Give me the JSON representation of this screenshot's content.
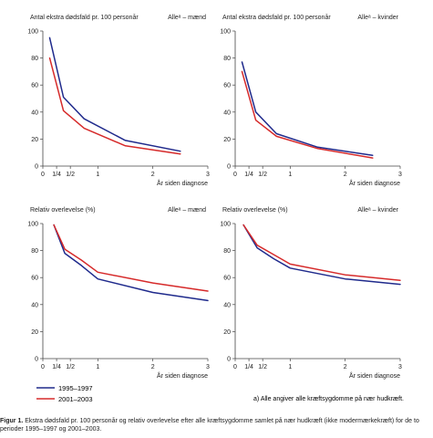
{
  "colors": {
    "series_1995": "#1f2a8c",
    "series_2001": "#d62a2a",
    "axis": "#444444",
    "text": "#222222"
  },
  "legend": {
    "series_1995": "1995–1997",
    "series_2001": "2001–2003"
  },
  "note": "a) Alle angiver alle kræftsygdomme på nær hudkræft.",
  "caption": {
    "label": "Figur 1.",
    "text": "Ekstra dødsfald pr. 100 personår og relativ overlevelse efter alle kræftsygdomme samlet på nær hudkræft (ikke modermærkekræft) for de to perioder 1995–1997 og 2001–2003."
  },
  "chart_data": [
    {
      "type": "line",
      "ylabel": "Antal ekstra dødsfald pr. 100 personår",
      "panel_label": "Alleᵃ – mænd",
      "xlabel": "År siden diagnose",
      "xlim": [
        0,
        3
      ],
      "ylim": [
        0,
        100
      ],
      "x_ticks": [
        0,
        0.25,
        0.5,
        1,
        2,
        3
      ],
      "x_tick_labels": [
        "0",
        "1/4",
        "1/2",
        "1",
        "2",
        "3"
      ],
      "y_ticks": [
        0,
        20,
        40,
        60,
        80,
        100
      ],
      "y_tick_labels": [
        "0",
        "20",
        "40",
        "60",
        "80",
        "100"
      ],
      "series": [
        {
          "name": "1995–1997",
          "x": [
            0.125,
            0.375,
            0.75,
            1.5,
            2.5
          ],
          "y": [
            95,
            51,
            35,
            19,
            11
          ]
        },
        {
          "name": "2001–2003",
          "x": [
            0.125,
            0.375,
            0.75,
            1.5,
            2.5
          ],
          "y": [
            80,
            41,
            28,
            15,
            9
          ]
        }
      ]
    },
    {
      "type": "line",
      "ylabel": "Antal ekstra dødsfald pr. 100 personår",
      "panel_label": "Alleᵃ – kvinder",
      "xlabel": "År siden diagnose",
      "xlim": [
        0,
        3
      ],
      "ylim": [
        0,
        100
      ],
      "x_ticks": [
        0,
        0.25,
        0.5,
        1,
        2,
        3
      ],
      "x_tick_labels": [
        "0",
        "1/4",
        "1/2",
        "1",
        "2",
        "3"
      ],
      "y_ticks": [
        0,
        20,
        40,
        60,
        80,
        100
      ],
      "y_tick_labels": [
        "0",
        "20",
        "40",
        "60",
        "80",
        "100"
      ],
      "series": [
        {
          "name": "1995–1997",
          "x": [
            0.125,
            0.375,
            0.75,
            1.5,
            2.5
          ],
          "y": [
            77,
            40,
            24,
            14,
            8
          ]
        },
        {
          "name": "2001–2003",
          "x": [
            0.125,
            0.375,
            0.75,
            1.5,
            2.5
          ],
          "y": [
            70,
            34,
            22,
            13,
            6
          ]
        }
      ]
    },
    {
      "type": "line",
      "ylabel": "Relativ overlevelse (%)",
      "panel_label": "Alleᵃ – mænd",
      "xlabel": "År siden diagnose",
      "xlim": [
        0,
        3
      ],
      "ylim": [
        0,
        100
      ],
      "x_ticks": [
        0,
        0.25,
        0.5,
        1,
        2,
        3
      ],
      "x_tick_labels": [
        "0",
        "1/4",
        "1/2",
        "1",
        "2",
        "3"
      ],
      "y_ticks": [
        0,
        20,
        40,
        60,
        80,
        100
      ],
      "y_tick_labels": [
        "0",
        "20",
        "40",
        "60",
        "80",
        "100"
      ],
      "series": [
        {
          "name": "1995–1997",
          "x": [
            0.2,
            0.4,
            0.7,
            1,
            2,
            3
          ],
          "y": [
            99,
            78,
            69,
            59,
            49,
            43
          ]
        },
        {
          "name": "2001–2003",
          "x": [
            0.2,
            0.4,
            0.7,
            1,
            2,
            3
          ],
          "y": [
            99,
            81,
            73,
            64,
            56,
            50
          ]
        }
      ]
    },
    {
      "type": "line",
      "ylabel": "Relativ overlevelse (%)",
      "panel_label": "Alleᵃ – kvinder",
      "xlabel": "År siden diagnose",
      "xlim": [
        0,
        3
      ],
      "ylim": [
        0,
        100
      ],
      "x_ticks": [
        0,
        0.25,
        0.5,
        1,
        2,
        3
      ],
      "x_tick_labels": [
        "0",
        "1/4",
        "1/2",
        "1",
        "2",
        "3"
      ],
      "y_ticks": [
        0,
        20,
        40,
        60,
        80,
        100
      ],
      "y_tick_labels": [
        "0",
        "20",
        "40",
        "60",
        "80",
        "100"
      ],
      "series": [
        {
          "name": "1995–1997",
          "x": [
            0.15,
            0.4,
            0.7,
            1,
            2,
            3
          ],
          "y": [
            99,
            82,
            74,
            67,
            59,
            55
          ]
        },
        {
          "name": "2001–2003",
          "x": [
            0.15,
            0.4,
            0.7,
            1,
            2,
            3
          ],
          "y": [
            99,
            84,
            77,
            70,
            62,
            58
          ]
        }
      ]
    }
  ]
}
